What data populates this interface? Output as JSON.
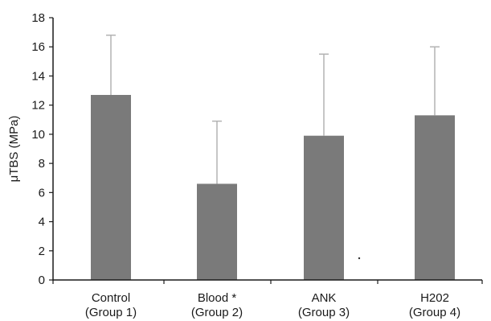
{
  "chart_data": {
    "type": "bar",
    "title": "",
    "xlabel": "",
    "ylabel": "μTBS (MPa)",
    "ylim": [
      0,
      18
    ],
    "yticks": [
      0,
      2,
      4,
      6,
      8,
      10,
      12,
      14,
      16,
      18
    ],
    "grid": false,
    "categories": [
      {
        "line1": "Control",
        "line2": "(Group 1)"
      },
      {
        "line1": "Blood *",
        "line2": "(Group 2)"
      },
      {
        "line1": "ANK",
        "line2": "(Group 3)"
      },
      {
        "line1": "H202",
        "line2": "(Group 4)"
      }
    ],
    "values": [
      12.7,
      6.6,
      9.9,
      11.3
    ],
    "error_upper": [
      16.8,
      10.9,
      15.5,
      16.0
    ],
    "bar_color": "#7a7a7a",
    "error_color": "#b3b3b3",
    "axis_color": "#1a1a1a"
  }
}
